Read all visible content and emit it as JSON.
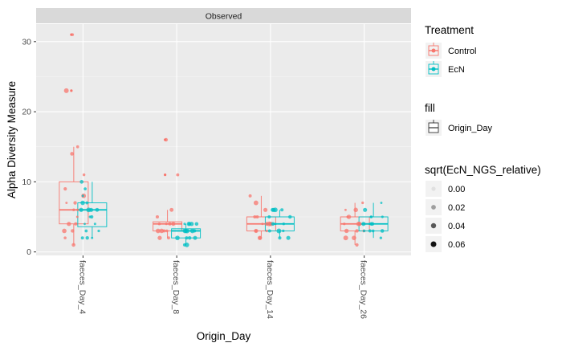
{
  "chart_data": {
    "type": "boxplot",
    "facet_label": "Observed",
    "xlabel": "Origin_Day",
    "ylabel": "Alpha Diversity Measure",
    "categories": [
      "faeces_Day_4",
      "faeces_Day_8",
      "faeces_Day_14",
      "faeces_Day_26"
    ],
    "ylim": [
      -0.5,
      32.5
    ],
    "yticks": [
      0,
      10,
      20,
      30
    ],
    "grid": true,
    "colors": {
      "Control": "#F8766D",
      "EcN": "#00BFC4"
    },
    "series": [
      {
        "name": "Control",
        "boxes": [
          {
            "min": 1,
            "q1": 4,
            "median": 6,
            "q3": 10,
            "max": 15,
            "outliers": [
              23,
              31
            ]
          },
          {
            "min": 2,
            "q1": 3,
            "median": 4,
            "q3": 4.3,
            "max": 6,
            "outliers": [
              11,
              16
            ]
          },
          {
            "min": 2,
            "q1": 3,
            "median": 4,
            "q3": 5,
            "max": 8,
            "outliers": []
          },
          {
            "min": 1,
            "q1": 3,
            "median": 4,
            "q3": 5,
            "max": 7,
            "outliers": []
          }
        ],
        "points": [
          [
            1,
            2,
            3,
            3,
            4,
            4,
            5,
            6,
            6,
            7,
            7,
            8,
            9,
            11,
            14,
            15,
            23,
            31
          ],
          [
            2,
            2,
            3,
            3,
            3,
            3,
            4,
            4,
            4,
            4,
            5,
            6,
            11,
            16
          ],
          [
            2,
            2,
            3,
            3,
            3,
            4,
            4,
            4,
            4,
            5,
            5,
            6,
            7,
            8
          ],
          [
            1,
            2,
            2,
            3,
            3,
            3,
            4,
            4,
            4,
            5,
            5,
            6,
            6,
            7
          ]
        ]
      },
      {
        "name": "EcN",
        "boxes": [
          {
            "min": 2,
            "q1": 3.6,
            "median": 6,
            "q3": 7,
            "max": 10,
            "outliers": []
          },
          {
            "min": 1,
            "q1": 2,
            "median": 3,
            "q3": 3.3,
            "max": 4,
            "outliers": []
          },
          {
            "min": 2,
            "q1": 3,
            "median": 4,
            "q3": 5,
            "max": 6,
            "outliers": []
          },
          {
            "min": 2,
            "q1": 3,
            "median": 4,
            "q3": 5,
            "max": 7,
            "outliers": []
          }
        ],
        "points": [
          [
            2,
            2,
            2,
            3,
            3,
            4,
            4,
            5,
            5,
            6,
            6,
            6,
            6,
            7,
            7,
            8,
            9,
            10
          ],
          [
            1,
            1,
            2,
            2,
            2,
            2,
            3,
            3,
            3,
            3,
            3,
            4,
            4,
            4,
            4,
            4
          ],
          [
            2,
            2,
            3,
            3,
            3,
            4,
            4,
            4,
            5,
            5,
            6,
            6,
            6,
            6
          ],
          [
            2,
            3,
            3,
            3,
            3,
            4,
            4,
            4,
            4,
            5,
            5,
            5,
            6,
            7
          ]
        ]
      }
    ],
    "legend": {
      "position": "right",
      "treatment": {
        "title": "Treatment",
        "entries": [
          "Control",
          "EcN"
        ]
      },
      "fill": {
        "title": "fill",
        "entries": [
          "Origin_Day"
        ]
      },
      "size": {
        "title": "sqrt(EcN_NGS_relative)",
        "entries": [
          "0.00",
          "0.02",
          "0.04",
          "0.06"
        ]
      }
    }
  }
}
